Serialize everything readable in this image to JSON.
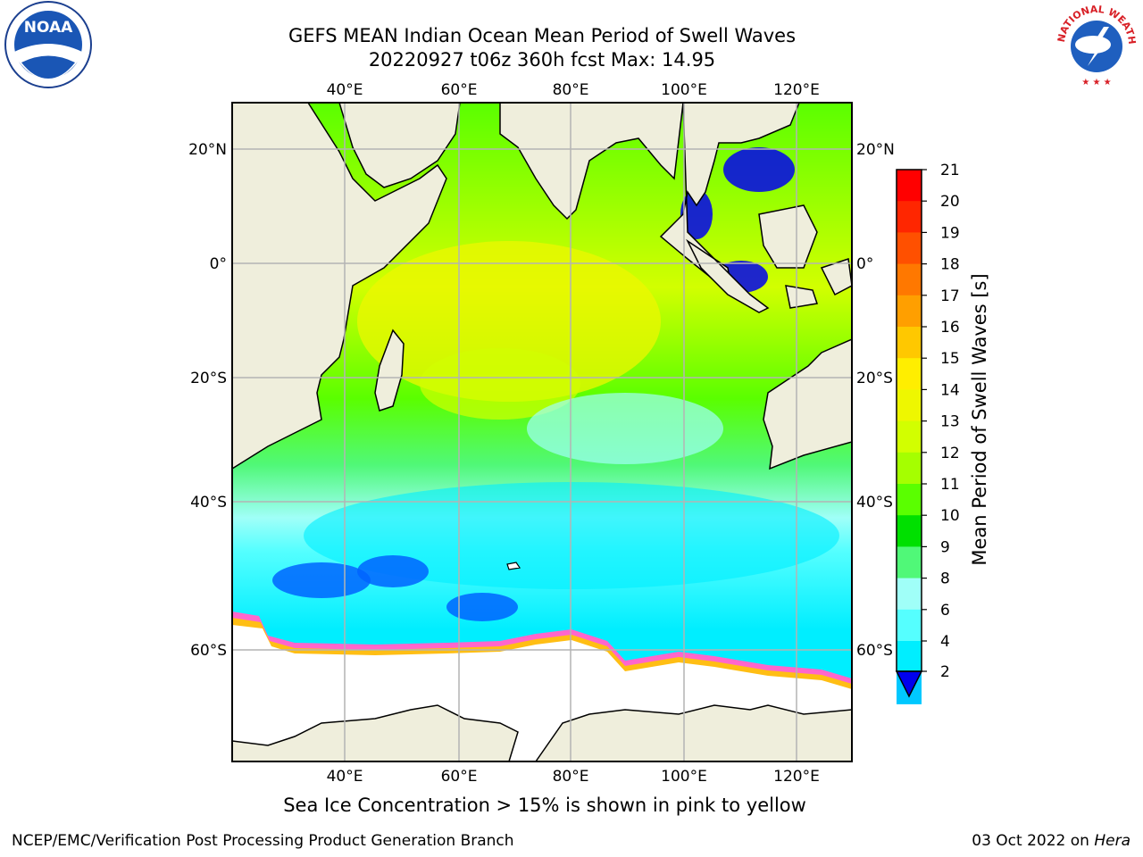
{
  "title": {
    "line1": "GEFS MEAN Indian Ocean Mean Period of Swell Waves",
    "line2": "20220927 t06z 360h fcst   Max: 14.95"
  },
  "logos": {
    "left": "noaa-logo",
    "right": "nws-logo",
    "left_text": "NOAA",
    "right_text": "NATIONAL WEATHER SERVICE"
  },
  "map": {
    "lon_ticks_top": [
      "40°E",
      "60°E",
      "80°E",
      "100°E",
      "120°E"
    ],
    "lon_ticks_bottom": [
      "40°E",
      "60°E",
      "80°E",
      "100°E",
      "120°E"
    ],
    "lat_ticks_left": [
      "20°N",
      "0°",
      "20°S",
      "40°S",
      "60°S"
    ],
    "lat_ticks_right": [
      "20°N",
      "0°",
      "20°S",
      "40°S",
      "60°S"
    ],
    "lon_range": [
      20,
      130
    ],
    "lat_range": [
      -70,
      27
    ],
    "grid": true
  },
  "colorbar": {
    "label": "Mean Period of Swell Waves [s]",
    "ticks": [
      "21",
      "20",
      "19",
      "18",
      "17",
      "16",
      "15",
      "14",
      "13",
      "12",
      "11",
      "10",
      "9",
      "8",
      "6",
      "4",
      "2"
    ],
    "colors": [
      "#ff0000",
      "#ff2600",
      "#ff5000",
      "#ff7800",
      "#ff9f00",
      "#ffc800",
      "#ffee00",
      "#eef700",
      "#d2ff00",
      "#a5ff00",
      "#5aff00",
      "#00e000",
      "#50f878",
      "#a0fff8",
      "#55ffff",
      "#00eeff",
      "#00c8ff",
      "#0064ff"
    ],
    "extend_color": "#0000ee"
  },
  "colors": {
    "land": "#efeedc",
    "ice": "#ffffff"
  },
  "note": "Sea Ice Concentration > 15% is shown in pink to yellow",
  "footer": {
    "credit": "NCEP/EMC/Verification Post Processing Product Generation Branch",
    "date_prefix": "03 Oct 2022 on ",
    "date_machine": "Hera"
  }
}
